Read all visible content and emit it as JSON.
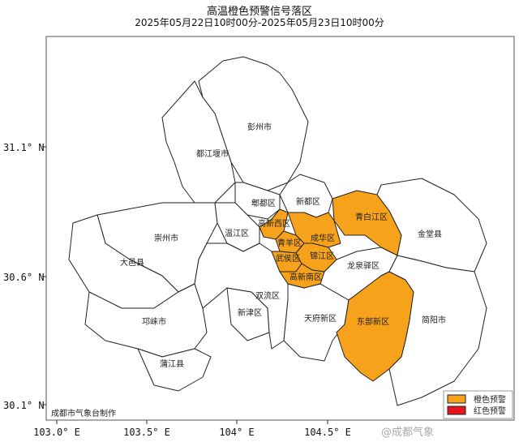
{
  "title": "高温橙色预警信号落区",
  "subtitle": "2025年05月22日10时00分-2025年05月23日10时00分",
  "colors": {
    "orange": "#f7a21b",
    "red": "#e8141c",
    "border": "#222222"
  },
  "districts": [
    {
      "name": "彭州市",
      "warning": "none"
    },
    {
      "name": "都江堰市",
      "warning": "none"
    },
    {
      "name": "郫都区",
      "warning": "none"
    },
    {
      "name": "新都区",
      "warning": "none"
    },
    {
      "name": "青白江区",
      "warning": "orange"
    },
    {
      "name": "金堂县",
      "warning": "none"
    },
    {
      "name": "崇州市",
      "warning": "none"
    },
    {
      "name": "大邑县",
      "warning": "none"
    },
    {
      "name": "温江区",
      "warning": "none"
    },
    {
      "name": "邛崃市",
      "warning": "none"
    },
    {
      "name": "蒲江县",
      "warning": "none"
    },
    {
      "name": "新津区",
      "warning": "none"
    },
    {
      "name": "双流区",
      "warning": "none"
    },
    {
      "name": "天府新区",
      "warning": "none"
    },
    {
      "name": "龙泉驿区",
      "warning": "none"
    },
    {
      "name": "东部新区",
      "warning": "orange"
    },
    {
      "name": "简阳市",
      "warning": "none"
    },
    {
      "name": "高新西区",
      "warning": "orange"
    },
    {
      "name": "青羊区",
      "warning": "orange"
    },
    {
      "name": "成华区",
      "warning": "orange"
    },
    {
      "name": "武侯区",
      "warning": "orange"
    },
    {
      "name": "锦江区",
      "warning": "orange"
    },
    {
      "name": "高新南区",
      "warning": "orange"
    }
  ],
  "axes": {
    "lat_ticks": [
      "31.1° N",
      "30.6° N",
      "30.1° N"
    ],
    "lon_ticks": [
      "103.0° E",
      "103.5° E",
      "104° E",
      "104.5° E"
    ]
  },
  "legend": [
    {
      "label": "橙色预警",
      "color": "#f7a21b"
    },
    {
      "label": "红色预警",
      "color": "#e8141c"
    }
  ],
  "credit": "成都市气象台制作",
  "watermark": "@成都气象"
}
